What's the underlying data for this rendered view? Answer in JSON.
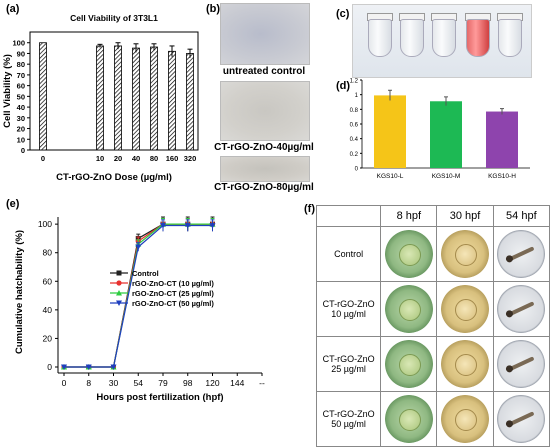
{
  "panels": {
    "a": {
      "letter": "(a)",
      "title": "Cell Viability of 3T3L1",
      "xlabel": "CT-rGO-ZnO Dose (µg/ml)",
      "ylabel": "Cell Viability (%)"
    },
    "b": {
      "letter": "(b)",
      "captions": [
        "untreated control",
        "CT-rGO-ZnO-40µg/ml",
        "CT-rGO-ZnO-80µg/ml"
      ]
    },
    "c": {
      "letter": "(c)"
    },
    "d": {
      "letter": "(d)"
    },
    "e": {
      "letter": "(e)",
      "xlabel": "Hours post fertilization (hpf)",
      "ylabel": "Cumulative hatchability (%)"
    },
    "f": {
      "letter": "(f)",
      "col_headers": [
        "8 hpf",
        "30 hpf",
        "54 hpf"
      ],
      "rows": [
        {
          "line1": "Control",
          "line2": ""
        },
        {
          "line1": "CT-rGO-ZnO",
          "line2": "10 µg/ml"
        },
        {
          "line1": "CT-rGO-ZnO",
          "line2": "25 µg/ml"
        },
        {
          "line1": "CT-rGO-ZnO",
          "line2": "50 µg/ml"
        }
      ]
    }
  },
  "chart_data": [
    {
      "id": "a",
      "type": "bar",
      "title": "Cell Viability of 3T3L1",
      "xlabel": "CT-rGO-ZnO Dose (µg/ml)",
      "ylabel": "Cell Viability (%)",
      "categories": [
        "0",
        "10",
        "20",
        "40",
        "80",
        "160",
        "320"
      ],
      "values": [
        100,
        97,
        97,
        95,
        96,
        92,
        90
      ],
      "errors": [
        0,
        1.5,
        3,
        4,
        3,
        5,
        4
      ],
      "ylim": [
        0,
        110
      ],
      "yticks": [
        0,
        10,
        20,
        30,
        40,
        50,
        60,
        70,
        80,
        90,
        100
      ],
      "bar_pattern": "hatched",
      "grid": false
    },
    {
      "id": "d",
      "type": "bar",
      "categories": [
        "KGS10-L",
        "KGS10-M",
        "KGS10-H"
      ],
      "values": [
        0.99,
        0.91,
        0.77
      ],
      "errors": [
        0.07,
        0.06,
        0.04
      ],
      "colors": [
        "#f5c518",
        "#1db954",
        "#8e44ad"
      ],
      "ylim": [
        0,
        1.2
      ],
      "yticks": [
        0,
        0.2,
        0.4,
        0.6,
        0.8,
        1,
        1.2
      ],
      "ytick_labels": [
        "0",
        "0.2",
        "0.4",
        "0.6",
        "0.8",
        "1",
        "1.2"
      ],
      "grid": false
    },
    {
      "id": "e",
      "type": "line",
      "xlabel": "Hours post fertilization (hpf)",
      "ylabel": "Cumulative hatchability (%)",
      "x": [
        0,
        8,
        30,
        54,
        79,
        98,
        120
      ],
      "xticks": [
        "0",
        "8",
        "30",
        "54",
        "79",
        "98",
        "120",
        "144",
        "--"
      ],
      "ylim": [
        0,
        105
      ],
      "yticks": [
        0,
        20,
        40,
        60,
        80,
        100
      ],
      "legend_position": "center-right",
      "series": [
        {
          "name": "Control",
          "color": "#222222",
          "marker": "square",
          "values": [
            0,
            0,
            0,
            90,
            100,
            100,
            100
          ],
          "errors": [
            0,
            0,
            0,
            3,
            5,
            5,
            5
          ]
        },
        {
          "name": "rGO-ZnO-CT (10 µg/ml)",
          "color": "#e8312f",
          "marker": "circle",
          "values": [
            0,
            0,
            0,
            88,
            100,
            100,
            100
          ],
          "errors": [
            0,
            0,
            0,
            3,
            4,
            4,
            4
          ]
        },
        {
          "name": "rGO-ZnO-CT (25 µg/ml)",
          "color": "#2ecc40",
          "marker": "triangle",
          "values": [
            0,
            0,
            0,
            86,
            100,
            100,
            100
          ],
          "errors": [
            0,
            0,
            0,
            3,
            4,
            4,
            4
          ]
        },
        {
          "name": "rGO-ZnO-CT (50 µg/ml)",
          "color": "#1f3fbf",
          "marker": "triangle-down",
          "values": [
            0,
            0,
            0,
            84,
            99,
            99,
            99
          ],
          "errors": [
            0,
            0,
            0,
            3,
            4,
            4,
            4
          ]
        }
      ]
    }
  ]
}
